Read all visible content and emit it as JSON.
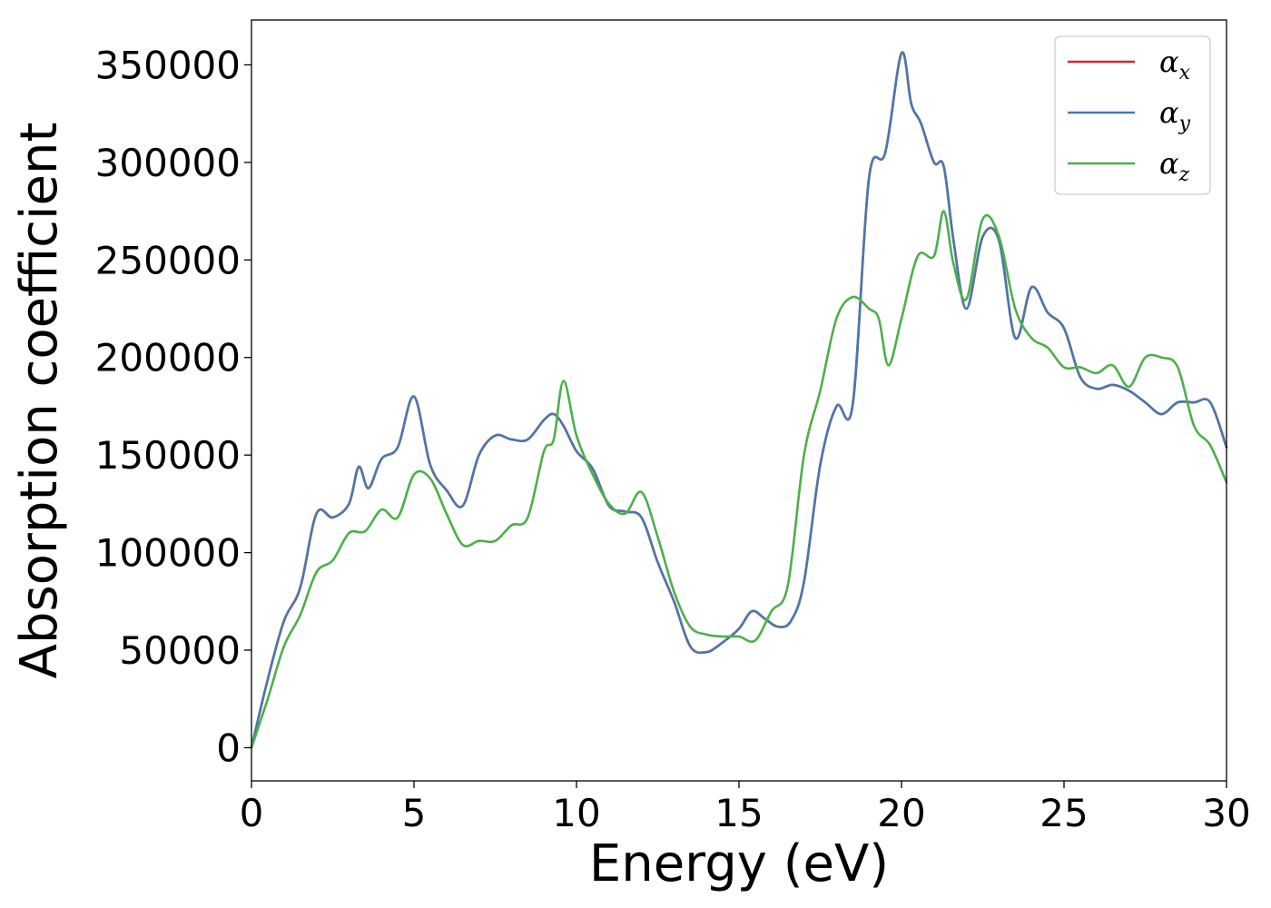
{
  "chart_data": {
    "type": "line",
    "title": "",
    "xlabel": "Energy (eV)",
    "ylabel": "Absorption coefficient",
    "xlim": [
      0,
      30
    ],
    "ylim": [
      -17000,
      373000
    ],
    "xticks": [
      "0",
      "5",
      "10",
      "15",
      "20",
      "25",
      "30"
    ],
    "yticks": [
      "0",
      "50000",
      "100000",
      "150000",
      "200000",
      "250000",
      "300000",
      "350000"
    ],
    "grid": false,
    "legend_position": "top-right",
    "legend": [
      {
        "label": "α",
        "subscript": "x",
        "color": "#d62728"
      },
      {
        "label": "α",
        "subscript": "y",
        "color": "#4a78ab"
      },
      {
        "label": "α",
        "subscript": "z",
        "color": "#4daf4a"
      }
    ],
    "series": [
      {
        "name": "αx",
        "color": "#d62728",
        "x": [
          0,
          0.5,
          1,
          1.5,
          2,
          2.5,
          3,
          3.3,
          3.6,
          4,
          4.5,
          5,
          5.5,
          6,
          6.5,
          7,
          7.5,
          8,
          8.5,
          9,
          9.3,
          9.6,
          10,
          10.5,
          11,
          11.5,
          12,
          12.5,
          13,
          13.5,
          14,
          14.5,
          15,
          15.4,
          15.8,
          16.2,
          16.6,
          17,
          17.5,
          18,
          18.5,
          19,
          19.5,
          20,
          20.3,
          20.6,
          21,
          21.3,
          21.6,
          22,
          22.5,
          23,
          23.5,
          24,
          24.5,
          25,
          25.5,
          26,
          26.5,
          27,
          27.5,
          28,
          28.5,
          29,
          29.5,
          30
        ],
        "y": [
          0,
          35000,
          65000,
          82000,
          120000,
          118000,
          125000,
          144000,
          133000,
          148000,
          154000,
          180000,
          145000,
          132000,
          124000,
          150000,
          160000,
          158000,
          158000,
          168000,
          171000,
          165000,
          152000,
          143000,
          124000,
          121000,
          118000,
          95000,
          75000,
          52000,
          49000,
          54000,
          61000,
          70000,
          66000,
          62000,
          65000,
          85000,
          145000,
          175000,
          176000,
          292000,
          305000,
          356000,
          330000,
          320000,
          300000,
          298000,
          260000,
          225000,
          262000,
          260000,
          210000,
          236000,
          223000,
          215000,
          190000,
          184000,
          186000,
          183000,
          177000,
          171000,
          177000,
          177000,
          177000,
          154000
        ]
      },
      {
        "name": "αy",
        "color": "#4a78ab",
        "x": [
          0,
          0.5,
          1,
          1.5,
          2,
          2.5,
          3,
          3.3,
          3.6,
          4,
          4.5,
          5,
          5.5,
          6,
          6.5,
          7,
          7.5,
          8,
          8.5,
          9,
          9.3,
          9.6,
          10,
          10.5,
          11,
          11.5,
          12,
          12.5,
          13,
          13.5,
          14,
          14.5,
          15,
          15.4,
          15.8,
          16.2,
          16.6,
          17,
          17.5,
          18,
          18.5,
          19,
          19.5,
          20,
          20.3,
          20.6,
          21,
          21.3,
          21.6,
          22,
          22.5,
          23,
          23.5,
          24,
          24.5,
          25,
          25.5,
          26,
          26.5,
          27,
          27.5,
          28,
          28.5,
          29,
          29.5,
          30
        ],
        "y": [
          0,
          35000,
          65000,
          82000,
          120000,
          118000,
          125000,
          144000,
          133000,
          148000,
          154000,
          180000,
          145000,
          132000,
          124000,
          150000,
          160000,
          158000,
          158000,
          168000,
          171000,
          165000,
          152000,
          143000,
          124000,
          121000,
          118000,
          95000,
          75000,
          52000,
          49000,
          54000,
          61000,
          70000,
          66000,
          62000,
          65000,
          85000,
          145000,
          175000,
          176000,
          292000,
          305000,
          356000,
          330000,
          320000,
          300000,
          298000,
          260000,
          225000,
          262000,
          260000,
          210000,
          236000,
          223000,
          215000,
          190000,
          184000,
          186000,
          183000,
          177000,
          171000,
          177000,
          177000,
          177000,
          154000
        ]
      },
      {
        "name": "αz",
        "color": "#4daf4a",
        "x": [
          0,
          0.5,
          1,
          1.5,
          2,
          2.5,
          3,
          3.5,
          4,
          4.5,
          5,
          5.5,
          6,
          6.5,
          7,
          7.5,
          8,
          8.5,
          9,
          9.3,
          9.6,
          10,
          10.5,
          11,
          11.5,
          12,
          12.5,
          13,
          13.5,
          14,
          14.5,
          15,
          15.5,
          16,
          16.5,
          17,
          17.5,
          18,
          18.5,
          19,
          19.3,
          19.6,
          20,
          20.5,
          21,
          21.3,
          21.6,
          22,
          22.5,
          23,
          23.5,
          24,
          24.5,
          25,
          25.5,
          26,
          26.5,
          27,
          27.5,
          28,
          28.5,
          29,
          29.5,
          30
        ],
        "y": [
          0,
          25000,
          52000,
          68000,
          90000,
          96000,
          110000,
          111000,
          122000,
          118000,
          140000,
          138000,
          120000,
          104000,
          106000,
          106000,
          114000,
          118000,
          152000,
          158000,
          188000,
          160000,
          140000,
          125000,
          120000,
          131000,
          108000,
          80000,
          62000,
          58000,
          57000,
          57000,
          55000,
          70000,
          83000,
          150000,
          183000,
          220000,
          231000,
          225000,
          220000,
          196000,
          220000,
          252000,
          252000,
          275000,
          248000,
          230000,
          271000,
          262000,
          225000,
          210000,
          205000,
          195000,
          195000,
          192000,
          196000,
          185000,
          200000,
          200000,
          195000,
          165000,
          155000,
          136000
        ]
      }
    ]
  }
}
